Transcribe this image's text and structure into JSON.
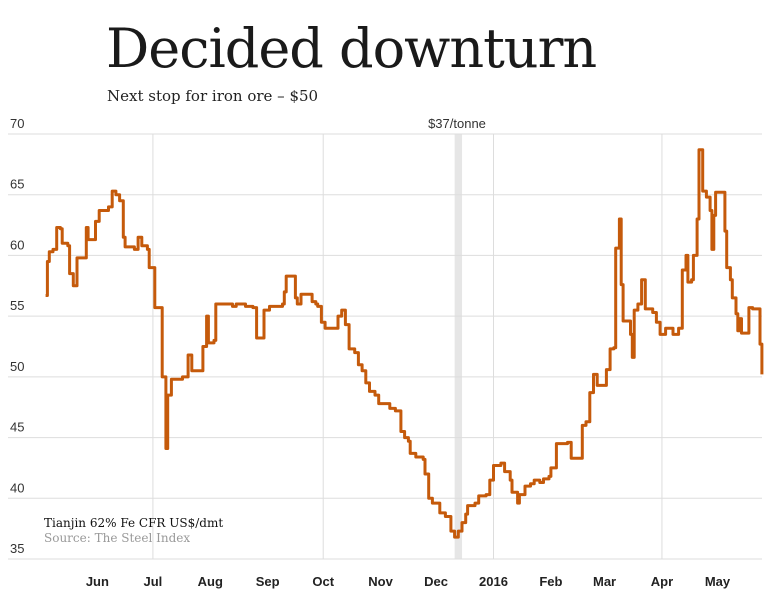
{
  "title": "Decided downturn",
  "subtitle": "Next stop for iron ore – $50",
  "chart_data": {
    "type": "line",
    "step": true,
    "title": "Decided downturn",
    "subtitle": "Next stop for iron ore – $50",
    "series_label": "Tianjin 62% Fe CFR US$/dmt",
    "source": "Source: The Steel Index",
    "annotation": {
      "label": "$37/tonne",
      "from": "2015-12-11",
      "to": "2015-12-15"
    },
    "ylim": [
      35,
      70
    ],
    "yticks": [
      70,
      65,
      60,
      55,
      50,
      45,
      40,
      35
    ],
    "xlim": [
      "2015-05-01",
      "2016-05-31"
    ],
    "xticks": [
      {
        "date": "2015-06-01",
        "label": "Jun"
      },
      {
        "date": "2015-07-01",
        "label": "Jul"
      },
      {
        "date": "2015-08-01",
        "label": "Aug"
      },
      {
        "date": "2015-09-01",
        "label": "Sep"
      },
      {
        "date": "2015-10-01",
        "label": "Oct"
      },
      {
        "date": "2015-11-01",
        "label": "Nov"
      },
      {
        "date": "2015-12-01",
        "label": "Dec"
      },
      {
        "date": "2016-01-01",
        "label": "2016"
      },
      {
        "date": "2016-02-01",
        "label": "Feb"
      },
      {
        "date": "2016-03-01",
        "label": "Mar"
      },
      {
        "date": "2016-04-01",
        "label": "Apr"
      },
      {
        "date": "2016-05-01",
        "label": "May"
      }
    ],
    "vgrid": [
      "2015-07-01",
      "2015-10-01",
      "2016-01-01",
      "2016-04-01"
    ],
    "grid": true,
    "colors": {
      "line": "#c55a0b",
      "grid": "#dddddd",
      "band": "#e6e6e6"
    },
    "x": [
      "2015-05-04",
      "2015-05-05",
      "2015-05-06",
      "2015-05-08",
      "2015-05-10",
      "2015-05-12",
      "2015-05-13",
      "2015-05-16",
      "2015-05-17",
      "2015-05-19",
      "2015-05-21",
      "2015-05-24",
      "2015-05-26",
      "2015-05-27",
      "2015-05-31",
      "2015-06-02",
      "2015-06-07",
      "2015-06-09",
      "2015-06-11",
      "2015-06-13",
      "2015-06-15",
      "2015-06-16",
      "2015-06-21",
      "2015-06-23",
      "2015-06-25",
      "2015-06-28",
      "2015-06-29",
      "2015-07-02",
      "2015-07-05",
      "2015-07-06",
      "2015-07-08",
      "2015-07-09",
      "2015-07-11",
      "2015-07-15",
      "2015-07-17",
      "2015-07-20",
      "2015-07-22",
      "2015-07-26",
      "2015-07-28",
      "2015-07-30",
      "2015-07-31",
      "2015-08-03",
      "2015-08-04",
      "2015-08-10",
      "2015-08-13",
      "2015-08-15",
      "2015-08-20",
      "2015-08-24",
      "2015-08-26",
      "2015-08-28",
      "2015-08-30",
      "2015-09-02",
      "2015-09-09",
      "2015-09-10",
      "2015-09-11",
      "2015-09-15",
      "2015-09-16",
      "2015-09-17",
      "2015-09-19",
      "2015-09-23",
      "2015-09-25",
      "2015-09-27",
      "2015-09-28",
      "2015-09-30",
      "2015-10-02",
      "2015-10-06",
      "2015-10-09",
      "2015-10-11",
      "2015-10-13",
      "2015-10-15",
      "2015-10-18",
      "2015-10-20",
      "2015-10-22",
      "2015-10-24",
      "2015-10-26",
      "2015-10-29",
      "2015-10-31",
      "2015-11-03",
      "2015-11-06",
      "2015-11-09",
      "2015-11-12",
      "2015-11-14",
      "2015-11-16",
      "2015-11-17",
      "2015-11-20",
      "2015-11-24",
      "2015-11-25",
      "2015-11-27",
      "2015-11-29",
      "2015-12-03",
      "2015-12-06",
      "2015-12-09",
      "2015-12-11",
      "2015-12-13",
      "2015-12-15",
      "2015-12-17",
      "2015-12-18",
      "2015-12-22",
      "2015-12-24",
      "2015-12-28",
      "2015-12-30",
      "2016-01-01",
      "2016-01-05",
      "2016-01-07",
      "2016-01-10",
      "2016-01-11",
      "2016-01-14",
      "2016-01-15",
      "2016-01-18",
      "2016-01-21",
      "2016-01-23",
      "2016-01-26",
      "2016-01-28",
      "2016-01-31",
      "2016-02-01",
      "2016-02-04",
      "2016-02-10",
      "2016-02-12",
      "2016-02-17",
      "2016-02-18",
      "2016-02-20",
      "2016-02-22",
      "2016-02-24",
      "2016-02-25",
      "2016-02-26",
      "2016-03-01",
      "2016-03-02",
      "2016-03-04",
      "2016-03-06",
      "2016-03-07",
      "2016-03-09",
      "2016-03-10",
      "2016-03-11",
      "2016-03-14",
      "2016-03-15",
      "2016-03-16",
      "2016-03-17",
      "2016-03-19",
      "2016-03-21",
      "2016-03-23",
      "2016-03-27",
      "2016-03-29",
      "2016-03-31",
      "2016-04-03",
      "2016-04-07",
      "2016-04-10",
      "2016-04-12",
      "2016-04-14",
      "2016-04-15",
      "2016-04-17",
      "2016-04-18",
      "2016-04-20",
      "2016-04-21",
      "2016-04-23",
      "2016-04-25",
      "2016-04-27",
      "2016-04-28",
      "2016-04-29",
      "2016-04-30",
      "2016-05-04",
      "2016-05-05",
      "2016-05-06",
      "2016-05-08",
      "2016-05-09",
      "2016-05-11",
      "2016-05-12",
      "2016-05-13",
      "2016-05-14",
      "2016-05-17",
      "2016-05-18",
      "2016-05-20",
      "2016-05-23",
      "2016-05-24",
      "2016-05-25"
    ],
    "y": [
      56.7,
      59.5,
      60.3,
      60.5,
      62.3,
      62.2,
      61.0,
      60.8,
      58.5,
      57.5,
      59.8,
      59.8,
      62.3,
      61.3,
      62.8,
      63.7,
      64.0,
      65.3,
      65.0,
      64.5,
      61.5,
      60.7,
      60.5,
      61.5,
      60.8,
      60.5,
      59.0,
      55.7,
      55.7,
      50.0,
      44.1,
      48.5,
      49.8,
      49.8,
      50.0,
      51.8,
      50.5,
      50.5,
      52.5,
      55.0,
      52.8,
      53.0,
      56.0,
      56.0,
      55.8,
      56.0,
      55.8,
      55.7,
      53.2,
      53.2,
      55.5,
      55.8,
      56.0,
      57.0,
      58.3,
      58.3,
      56.5,
      56.0,
      56.8,
      56.8,
      56.2,
      56.0,
      55.8,
      54.5,
      54.0,
      54.0,
      55.0,
      55.5,
      54.3,
      52.3,
      52.0,
      51.0,
      50.5,
      49.5,
      48.8,
      48.5,
      47.8,
      47.8,
      47.4,
      47.2,
      45.5,
      45.0,
      44.7,
      43.7,
      43.4,
      43.2,
      42.0,
      40.0,
      39.6,
      38.8,
      38.5,
      37.3,
      36.8,
      37.3,
      38.0,
      38.7,
      39.4,
      39.6,
      40.2,
      40.3,
      41.5,
      42.7,
      42.9,
      42.2,
      41.5,
      40.5,
      39.6,
      40.3,
      41.0,
      41.2,
      41.5,
      41.3,
      41.6,
      41.8,
      42.5,
      44.5,
      44.6,
      43.3,
      43.3,
      46.0,
      46.3,
      48.7,
      50.2,
      50.2,
      49.3,
      49.3,
      50.6,
      52.3,
      52.4,
      60.6,
      63.0,
      57.6,
      54.6,
      54.6,
      53.5,
      51.6,
      55.5,
      56.0,
      58.0,
      55.6,
      55.3,
      54.5,
      53.5,
      54.0,
      53.5,
      54.0,
      58.8,
      60.0,
      57.8,
      58.0,
      60.0,
      63.0,
      68.7,
      65.3,
      64.8,
      63.7,
      60.5,
      63.3,
      65.2,
      65.2,
      62.0,
      59.0,
      58.0,
      56.5,
      55.2,
      53.8,
      54.8,
      53.6,
      53.6,
      55.7,
      55.6,
      55.6,
      52.7,
      50.2
    ]
  }
}
